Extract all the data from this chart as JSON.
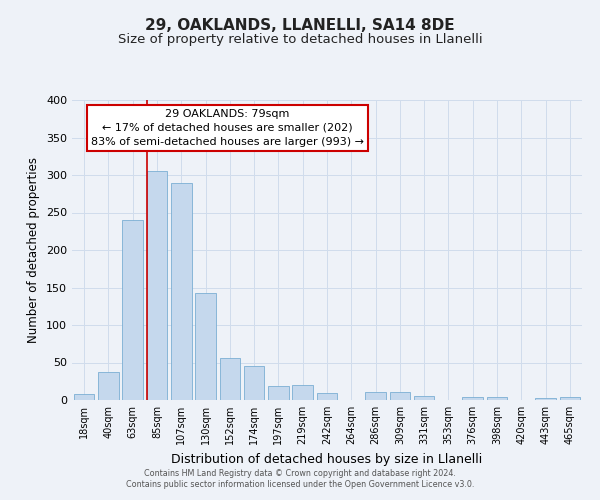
{
  "title": "29, OAKLANDS, LLANELLI, SA14 8DE",
  "subtitle": "Size of property relative to detached houses in Llanelli",
  "xlabel": "Distribution of detached houses by size in Llanelli",
  "ylabel": "Number of detached properties",
  "bar_labels": [
    "18sqm",
    "40sqm",
    "63sqm",
    "85sqm",
    "107sqm",
    "130sqm",
    "152sqm",
    "174sqm",
    "197sqm",
    "219sqm",
    "242sqm",
    "264sqm",
    "286sqm",
    "309sqm",
    "331sqm",
    "353sqm",
    "376sqm",
    "398sqm",
    "420sqm",
    "443sqm",
    "465sqm"
  ],
  "bar_values": [
    8,
    38,
    240,
    305,
    290,
    143,
    56,
    45,
    19,
    20,
    9,
    0,
    11,
    11,
    5,
    0,
    4,
    4,
    0,
    3,
    4
  ],
  "bar_color": "#c5d8ed",
  "bar_edge_color": "#7bafd4",
  "property_line_label": "29 OAKLANDS: 79sqm",
  "annotation_line1": "← 17% of detached houses are smaller (202)",
  "annotation_line2": "83% of semi-detached houses are larger (993) →",
  "annotation_box_color": "#ffffff",
  "annotation_box_edge": "#cc0000",
  "vline_color": "#cc0000",
  "grid_color": "#d0dcec",
  "background_color": "#eef2f8",
  "footer1": "Contains HM Land Registry data © Crown copyright and database right 2024.",
  "footer2": "Contains public sector information licensed under the Open Government Licence v3.0.",
  "ylim": [
    0,
    400
  ],
  "yticks": [
    0,
    50,
    100,
    150,
    200,
    250,
    300,
    350,
    400
  ],
  "title_fontsize": 11,
  "subtitle_fontsize": 9.5,
  "ylabel_fontsize": 8.5,
  "xlabel_fontsize": 9,
  "tick_fontsize": 8,
  "xtick_fontsize": 7,
  "footer_fontsize": 5.8,
  "annot_fontsize": 8
}
